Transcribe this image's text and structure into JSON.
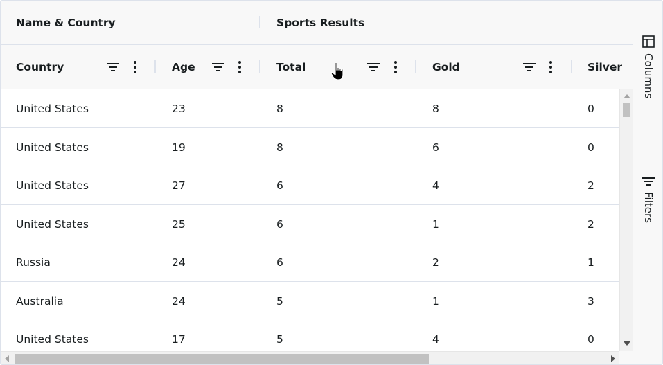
{
  "header": {
    "groups": [
      {
        "label": "Name & Country"
      },
      {
        "label": "Sports Results"
      }
    ],
    "columns": [
      {
        "label": "Country"
      },
      {
        "label": "Age"
      },
      {
        "label": "Total"
      },
      {
        "label": "Gold"
      },
      {
        "label": "Silver"
      }
    ]
  },
  "rows": [
    {
      "country": "United States",
      "age": "23",
      "total": "8",
      "gold": "8",
      "silver": "0"
    },
    {
      "country": "United States",
      "age": "19",
      "total": "8",
      "gold": "6",
      "silver": "0"
    },
    {
      "country": "United States",
      "age": "27",
      "total": "6",
      "gold": "4",
      "silver": "2"
    },
    {
      "country": "United States",
      "age": "25",
      "total": "6",
      "gold": "1",
      "silver": "2"
    },
    {
      "country": "Russia",
      "age": "24",
      "total": "6",
      "gold": "2",
      "silver": "1"
    },
    {
      "country": "Australia",
      "age": "24",
      "total": "5",
      "gold": "1",
      "silver": "3"
    },
    {
      "country": "United States",
      "age": "17",
      "total": "5",
      "gold": "4",
      "silver": "0"
    }
  ],
  "sidebar": {
    "columns_label": "Columns",
    "filters_label": "Filters"
  },
  "icons": {
    "filter": "filter-icon",
    "menu": "menu-vertical-icon",
    "columns": "columns-icon",
    "filters": "filter-icon",
    "cursor": "hand-pointer-icon"
  }
}
